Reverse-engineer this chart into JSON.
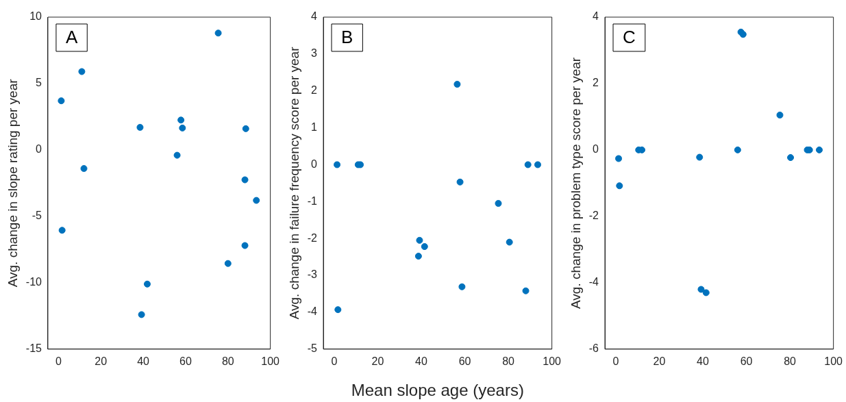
{
  "chart_data": [
    {
      "type": "scatter",
      "ylabel": "Avg. change in slope rating per year",
      "annotations": [
        "A"
      ],
      "xlim": [
        -5,
        100
      ],
      "xticks": [
        0,
        20,
        40,
        60,
        80,
        100
      ],
      "ylim": [
        -15,
        10
      ],
      "yticks": [
        -15,
        -10,
        -5,
        0,
        5,
        10
      ],
      "grid": false,
      "legend": false,
      "marker": "circle",
      "series": [
        {
          "color": "#0072bd",
          "x": [
            1.3,
            1.7,
            11,
            12,
            38.5,
            39.2,
            41.9,
            56,
            57.8,
            58.5,
            75.4,
            80,
            88,
            88,
            88.4,
            93.4
          ],
          "values": [
            3.7,
            -6.05,
            5.9,
            -1.4,
            1.7,
            -12.4,
            -10.1,
            -0.4,
            2.25,
            1.65,
            8.8,
            -8.55,
            -2.25,
            -7.2,
            1.6,
            -3.8
          ]
        }
      ]
    },
    {
      "type": "scatter",
      "xlabel": "Mean slope age (years)",
      "ylabel": "Avg. change in failure frequency score per year",
      "annotations": [
        "B"
      ],
      "xlim": [
        -5,
        100
      ],
      "xticks": [
        0,
        20,
        40,
        60,
        80,
        100
      ],
      "ylim": [
        -5,
        4
      ],
      "yticks": [
        -5,
        -4,
        -3,
        -2,
        -1,
        0,
        1,
        2,
        3,
        4
      ],
      "grid": false,
      "legend": false,
      "marker": "circle",
      "series": [
        {
          "color": "#0072bd",
          "x": [
            1.3,
            1.7,
            11,
            12,
            38.7,
            39.2,
            41.5,
            56.5,
            57.8,
            58.7,
            75.4,
            80.5,
            88,
            89,
            93.5
          ],
          "values": [
            0,
            -3.93,
            0,
            0,
            -2.48,
            -2.05,
            -2.22,
            2.18,
            -0.47,
            -3.31,
            -1.05,
            -2.1,
            -3.42,
            0,
            0
          ]
        }
      ]
    },
    {
      "type": "scatter",
      "ylabel": "Avg. change in problem type score per year",
      "annotations": [
        "C"
      ],
      "xlim": [
        -5,
        100
      ],
      "xticks": [
        0,
        20,
        40,
        60,
        80,
        100
      ],
      "ylim": [
        -6,
        4
      ],
      "yticks": [
        -6,
        -4,
        -2,
        0,
        2,
        4
      ],
      "grid": false,
      "legend": false,
      "marker": "circle",
      "series": [
        {
          "color": "#0072bd",
          "x": [
            1.3,
            1.7,
            10.5,
            12,
            38.5,
            39.2,
            41.5,
            56,
            57.5,
            58.5,
            75.4,
            80.3,
            88,
            89,
            93.5
          ],
          "values": [
            -0.26,
            -1.08,
            0,
            0,
            -0.22,
            -4.2,
            -4.3,
            0,
            3.55,
            3.48,
            1.05,
            -0.23,
            0,
            0,
            0
          ]
        }
      ]
    }
  ]
}
